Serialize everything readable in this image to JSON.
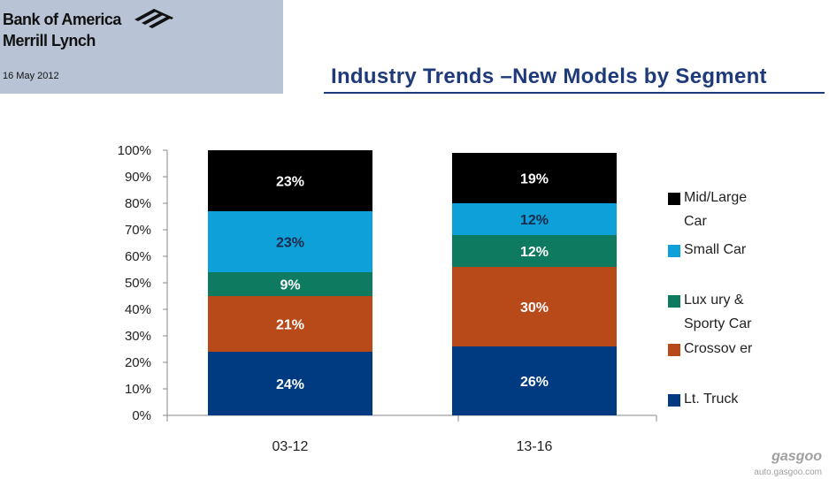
{
  "header": {
    "brand_line1": "Bank of America",
    "brand_line2": "Merrill Lynch",
    "date": "16 May 2012",
    "title": "Industry Trends –New Models by Segment",
    "logo_icon": "flag-icon",
    "header_color": "#b8c4d6",
    "title_color": "#1f3a7a"
  },
  "chart_data": {
    "type": "bar",
    "stacked": true,
    "percent": true,
    "categories": [
      "03-12",
      "13-16"
    ],
    "ylim": [
      0,
      100
    ],
    "y_ticks": [
      "0%",
      "10%",
      "20%",
      "30%",
      "40%",
      "50%",
      "60%",
      "70%",
      "80%",
      "90%",
      "100%"
    ],
    "grid": false,
    "legend_position": "right",
    "series": [
      {
        "name": "Lt. Truck",
        "values": [
          24,
          26
        ],
        "labels": [
          "24%",
          "26%"
        ],
        "color": "#003a80",
        "label_color": "#ffffff"
      },
      {
        "name": "Crossover",
        "values": [
          21,
          30
        ],
        "labels": [
          "21%",
          "30%"
        ],
        "color": "#b84a1a",
        "label_color": "#ffffff"
      },
      {
        "name": "Luxury & Sporty Car",
        "values": [
          9,
          12
        ],
        "labels": [
          "9%",
          "12%"
        ],
        "color": "#0e7a5f",
        "label_color": "#ffffff"
      },
      {
        "name": "Small Car",
        "values": [
          23,
          12
        ],
        "labels": [
          "23%",
          "12%"
        ],
        "color": "#0ea0d8",
        "label_color": "#1a2a4a"
      },
      {
        "name": "Mid/Large Car",
        "values": [
          23,
          19
        ],
        "labels": [
          "23%",
          "19%"
        ],
        "color": "#000000",
        "label_color": "#ffffff"
      }
    ],
    "legend": [
      {
        "lines": [
          "Mid/Large",
          "Car"
        ],
        "color": "#000000"
      },
      {
        "lines": [
          "Small Car"
        ],
        "color": "#0ea0d8"
      },
      {
        "lines": [
          "Lux ury  &",
          "Sporty  Car"
        ],
        "color": "#0e7a5f"
      },
      {
        "lines": [
          "Crossov er"
        ],
        "color": "#b84a1a"
      },
      {
        "lines": [
          "Lt. Truck"
        ],
        "color": "#003a80"
      }
    ]
  },
  "watermark": {
    "brand": "gasgoo",
    "url": "auto.gasgoo.com"
  }
}
